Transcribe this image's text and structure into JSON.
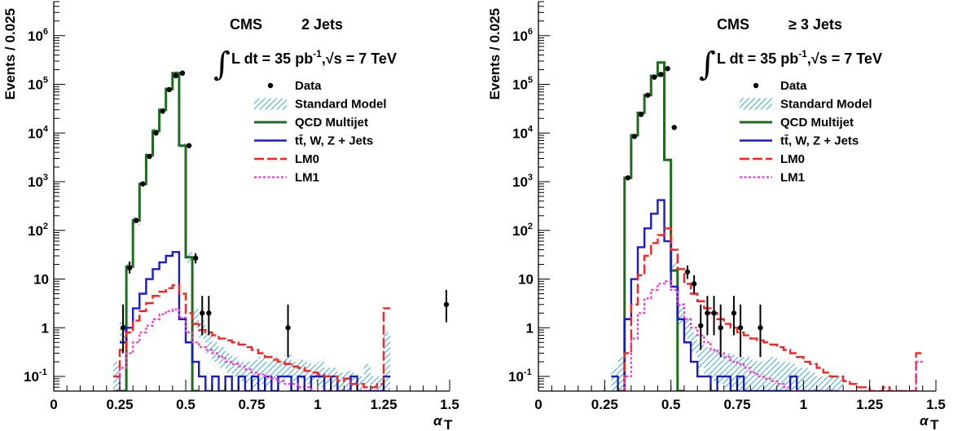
{
  "chart_data": [
    {
      "type": "step-histogram",
      "title": "CMS",
      "subtitle": "2 Jets",
      "lumi_text": "L dt = 35 pb",
      "lumi_exp": "-1",
      "lumi_tail": ",√s = 7 TeV",
      "ylabel": "Events / 0.025",
      "xlabel": "α",
      "xlabel_sub": "T",
      "xlim": [
        0,
        1.5
      ],
      "ylim": [
        0.05,
        5000000
      ],
      "log_y": true,
      "xticks": [
        {
          "v": 0,
          "t": "0"
        },
        {
          "v": 0.25,
          "t": "0.25"
        },
        {
          "v": 0.5,
          "t": "0.5"
        },
        {
          "v": 0.75,
          "t": "0.75"
        },
        {
          "v": 1,
          "t": "1"
        },
        {
          "v": 1.25,
          "t": "1.25"
        },
        {
          "v": 1.5,
          "t": "1.5"
        }
      ],
      "yticks": [
        {
          "v": 0.1,
          "b": "10",
          "e": "-1"
        },
        {
          "v": 1,
          "b": "1",
          "e": ""
        },
        {
          "v": 10,
          "b": "10",
          "e": ""
        },
        {
          "v": 100,
          "b": "10",
          "e": "2"
        },
        {
          "v": 1000,
          "b": "10",
          "e": "3"
        },
        {
          "v": 10000,
          "b": "10",
          "e": "4"
        },
        {
          "v": 100000,
          "b": "10",
          "e": "5"
        },
        {
          "v": 1000000,
          "b": "10",
          "e": "6"
        }
      ],
      "legend": [
        {
          "label": "Data",
          "style": "data"
        },
        {
          "label": "Standard Model",
          "style": "hatch"
        },
        {
          "label": "QCD Multijet",
          "style": "qcd"
        },
        {
          "label": "tt̄, W, Z + Jets",
          "style": "ewk"
        },
        {
          "label": "LM0",
          "style": "lm0"
        },
        {
          "label": "LM1",
          "style": "lm1"
        }
      ],
      "bin_width": 0.025,
      "colors": {
        "qcd": "#1f6b1f",
        "ewk": "#1a1ad6",
        "lm0": "#ff2020",
        "lm1": "#ff33cc",
        "sm_hatch": "#33aadd",
        "data": "#000000"
      },
      "series": [
        {
          "name": "QCD Multijet",
          "style": "qcd",
          "x0": 0.225,
          "values": [
            0.05,
            0.05,
            18,
            160,
            900,
            3500,
            11000,
            30000,
            80000,
            170000,
            5500,
            28,
            0.05
          ]
        },
        {
          "name": "tt̄, W, Z + Jets",
          "style": "ewk",
          "x0": 0.25,
          "values": [
            0.5,
            1,
            2.5,
            5,
            10,
            16,
            22,
            30,
            36,
            1.5,
            0.5,
            0.2,
            0.1,
            0.05,
            0.1,
            0.05,
            0.1,
            0.05,
            0.1,
            0.05,
            0.1,
            0.05,
            0.1,
            0.05,
            0.1,
            0.1,
            0.05,
            0.1,
            0.05,
            0.1,
            0.1,
            0.05,
            0.1,
            0.05,
            0.05,
            0.1,
            0.05,
            0.05,
            0.05,
            0.05,
            0.1
          ]
        },
        {
          "name": "LM0",
          "style": "lm0",
          "x0": 0.225,
          "values": [
            0.1,
            0.35,
            0.8,
            1.4,
            2.2,
            3.2,
            4.5,
            5.5,
            6.5,
            7.5,
            5,
            2,
            1.2,
            0.9,
            0.8,
            0.7,
            0.6,
            0.55,
            0.5,
            0.45,
            0.4,
            0.35,
            0.3,
            0.25,
            0.22,
            0.2,
            0.18,
            0.16,
            0.15,
            0.13,
            0.12,
            0.11,
            0.1,
            0.1,
            0.08,
            0.09,
            0.07,
            0.07,
            0.06,
            0.06,
            0.07,
            2.5
          ]
        },
        {
          "name": "LM1",
          "style": "lm1",
          "x0": 0.225,
          "values": [
            0.05,
            0.15,
            0.3,
            0.5,
            0.8,
            1.1,
            1.5,
            1.9,
            2.2,
            2.4,
            1.6,
            0.8,
            0.5,
            0.4,
            0.35,
            0.3,
            0.25,
            0.2,
            0.18,
            0.16,
            0.14,
            0.12,
            0.11,
            0.1,
            0.09,
            0.08,
            0.07,
            0.07,
            0.06,
            0.06,
            0.05,
            0.05,
            0.05,
            0.05,
            0.05,
            0.05,
            0.05,
            0.05,
            0.05,
            0.05,
            0.05,
            0.05
          ]
        }
      ],
      "sm_band": {
        "x0": 0.225,
        "lo": [
          0.05,
          0.5,
          15,
          130,
          800,
          3200,
          10000,
          28000,
          75000,
          160000,
          5000,
          22,
          1,
          0.6,
          0.3,
          0.2,
          0.15,
          0.12,
          0.1,
          0.08,
          0.07,
          0.06,
          0.07,
          0.06,
          0.08,
          0.07,
          0.1,
          0.08,
          0.09,
          0.07,
          0.08,
          0.06,
          0.07,
          0.06,
          0.05,
          0.05,
          0.06,
          0.05,
          0.07,
          0.05,
          0.05,
          0.05
        ],
        "hi": [
          0.2,
          1.3,
          22,
          190,
          1000,
          3900,
          12500,
          33000,
          88000,
          185000,
          6200,
          35,
          2.4,
          1.4,
          0.8,
          0.5,
          0.4,
          0.3,
          0.25,
          0.2,
          0.2,
          0.22,
          0.25,
          0.2,
          0.25,
          0.2,
          0.28,
          0.2,
          0.22,
          0.2,
          0.18,
          0.2,
          0.15,
          0.15,
          0.12,
          0.13,
          0.12,
          0.1,
          0.18,
          0.1,
          0.1,
          0.8
        ]
      },
      "data_points": [
        {
          "x": 0.2625,
          "y": 1,
          "lo": 0.3,
          "hi": 3
        },
        {
          "x": 0.2875,
          "y": 17,
          "lo": 13,
          "hi": 23
        },
        {
          "x": 0.3125,
          "y": 160,
          "lo": 145,
          "hi": 180
        },
        {
          "x": 0.3375,
          "y": 900,
          "lo": 860,
          "hi": 950
        },
        {
          "x": 0.3625,
          "y": 3300,
          "lo": 3200,
          "hi": 3400
        },
        {
          "x": 0.3875,
          "y": 10000,
          "lo": 9800,
          "hi": 10200
        },
        {
          "x": 0.4125,
          "y": 28000,
          "lo": 27500,
          "hi": 28500
        },
        {
          "x": 0.4375,
          "y": 78000,
          "lo": 77000,
          "hi": 79000
        },
        {
          "x": 0.4625,
          "y": 150000,
          "lo": 148000,
          "hi": 152000
        },
        {
          "x": 0.4875,
          "y": 170000,
          "lo": 168000,
          "hi": 172000
        },
        {
          "x": 0.5125,
          "y": 5500,
          "lo": 5400,
          "hi": 5600
        },
        {
          "x": 0.5375,
          "y": 27,
          "lo": 21,
          "hi": 34
        },
        {
          "x": 0.5625,
          "y": 2,
          "lo": 0.7,
          "hi": 4.5
        },
        {
          "x": 0.5875,
          "y": 2,
          "lo": 0.7,
          "hi": 4.5
        },
        {
          "x": 0.8875,
          "y": 1,
          "lo": 0.25,
          "hi": 3
        },
        {
          "x": 1.4875,
          "y": 3,
          "lo": 1.3,
          "hi": 6
        }
      ]
    },
    {
      "type": "step-histogram",
      "title": "CMS",
      "subtitle": "≥ 3 Jets",
      "lumi_text": "L dt = 35 pb",
      "lumi_exp": "-1",
      "lumi_tail": ",√s = 7 TeV",
      "ylabel": "Events / 0.025",
      "xlabel": "α",
      "xlabel_sub": "T",
      "xlim": [
        0,
        1.5
      ],
      "ylim": [
        0.05,
        5000000
      ],
      "log_y": true,
      "xticks": [
        {
          "v": 0,
          "t": "0"
        },
        {
          "v": 0.25,
          "t": "0.25"
        },
        {
          "v": 0.5,
          "t": "0.5"
        },
        {
          "v": 0.75,
          "t": "0.75"
        },
        {
          "v": 1,
          "t": "1"
        },
        {
          "v": 1.25,
          "t": "1.25"
        },
        {
          "v": 1.5,
          "t": "1.5"
        }
      ],
      "yticks": [
        {
          "v": 0.1,
          "b": "10",
          "e": "-1"
        },
        {
          "v": 1,
          "b": "1",
          "e": ""
        },
        {
          "v": 10,
          "b": "10",
          "e": ""
        },
        {
          "v": 100,
          "b": "10",
          "e": "2"
        },
        {
          "v": 1000,
          "b": "10",
          "e": "3"
        },
        {
          "v": 10000,
          "b": "10",
          "e": "4"
        },
        {
          "v": 100000,
          "b": "10",
          "e": "5"
        },
        {
          "v": 1000000,
          "b": "10",
          "e": "6"
        }
      ],
      "legend": [
        {
          "label": "Data",
          "style": "data"
        },
        {
          "label": "Standard Model",
          "style": "hatch"
        },
        {
          "label": "QCD Multijet",
          "style": "qcd"
        },
        {
          "label": "tt̄, W, Z + Jets",
          "style": "ewk"
        },
        {
          "label": "LM0",
          "style": "lm0"
        },
        {
          "label": "LM1",
          "style": "lm1"
        }
      ],
      "bin_width": 0.025,
      "colors": {
        "qcd": "#1f6b1f",
        "ewk": "#1a1ad6",
        "lm0": "#ff2020",
        "lm1": "#ff33cc",
        "sm_hatch": "#33aadd",
        "data": "#000000"
      },
      "series": [
        {
          "name": "QCD Multijet",
          "style": "qcd",
          "x0": 0.3,
          "values": [
            0.05,
            1200,
            9000,
            26000,
            60000,
            150000,
            280000,
            2800,
            15,
            0.05
          ]
        },
        {
          "name": "tt̄, W, Z + Jets",
          "style": "ewk",
          "x0": 0.275,
          "values": [
            0.1,
            0.05,
            1.5,
            10,
            45,
            110,
            220,
            420,
            60,
            7,
            1.5,
            0.5,
            0.2,
            0.1,
            0.1,
            0.05,
            0.1,
            0.1,
            0.05,
            0.1,
            0.05,
            0.05,
            0.05,
            0.05,
            0.05,
            0.05,
            0.05,
            0.1,
            0.05,
            0.05,
            0.05,
            0.05,
            0.05,
            0.05
          ]
        },
        {
          "name": "LM0",
          "style": "lm0",
          "x0": 0.3,
          "values": [
            0.05,
            0.3,
            3,
            12,
            30,
            55,
            80,
            110,
            40,
            16,
            8,
            5,
            3.5,
            2.5,
            2,
            1.5,
            1.2,
            1,
            0.8,
            0.7,
            0.6,
            0.55,
            0.5,
            0.45,
            0.4,
            0.35,
            0.3,
            0.25,
            0.2,
            0.18,
            0.15,
            0.12,
            0.1,
            0.1,
            0.08,
            0.07,
            0.06,
            0.06,
            0.05,
            0.05,
            0.06,
            0.05,
            0.05,
            0.05,
            0.05,
            0.3
          ]
        },
        {
          "name": "LM1",
          "style": "lm1",
          "x0": 0.3,
          "values": [
            0.05,
            0.1,
            0.6,
            2,
            4,
            6,
            8,
            9,
            6,
            3,
            1.5,
            1,
            0.7,
            0.5,
            0.35,
            0.3,
            0.25,
            0.2,
            0.18,
            0.15,
            0.12,
            0.1,
            0.09,
            0.08,
            0.07,
            0.06,
            0.05,
            0.05,
            0.05,
            0.05,
            0.05,
            0.05,
            0.05,
            0.05,
            0.05,
            0.05,
            0.05,
            0.05,
            0.05,
            0.05,
            0.05,
            0.05,
            0.05,
            0.05,
            0.05,
            0.2
          ]
        }
      ],
      "sm_band": {
        "x0": 0.275,
        "lo": [
          0.05,
          0.05,
          1100,
          8500,
          25000,
          58000,
          145000,
          270000,
          2600,
          14,
          1.2,
          0.6,
          0.3,
          0.15,
          0.1,
          0.08,
          0.07,
          0.06,
          0.06,
          0.05,
          0.05,
          0.05,
          0.05,
          0.05,
          0.05,
          0.05,
          0.05,
          0.05,
          0.05,
          0.05,
          0.05,
          0.05,
          0.05,
          0.05,
          0.05
        ],
        "hi": [
          0.15,
          0.25,
          1300,
          9500,
          27000,
          62000,
          155000,
          290000,
          3000,
          22,
          3,
          1.6,
          0.8,
          0.5,
          0.4,
          0.35,
          0.3,
          0.3,
          0.28,
          0.25,
          0.25,
          0.22,
          0.2,
          0.22,
          0.25,
          0.2,
          0.2,
          0.18,
          0.15,
          0.15,
          0.12,
          0.1,
          0.1,
          0.1,
          0.1
        ]
      },
      "data_points": [
        {
          "x": 0.3375,
          "y": 1200,
          "lo": 1140,
          "hi": 1260
        },
        {
          "x": 0.3625,
          "y": 8500,
          "lo": 8350,
          "hi": 8650
        },
        {
          "x": 0.3875,
          "y": 24000,
          "lo": 23700,
          "hi": 24300
        },
        {
          "x": 0.4125,
          "y": 60000,
          "lo": 59500,
          "hi": 60500
        },
        {
          "x": 0.4375,
          "y": 140000,
          "lo": 139000,
          "hi": 141000
        },
        {
          "x": 0.4625,
          "y": 160000,
          "lo": 159000,
          "hi": 161000
        },
        {
          "x": 0.4875,
          "y": 210000,
          "lo": 209000,
          "hi": 211000
        },
        {
          "x": 0.5125,
          "y": 13000,
          "lo": 12800,
          "hi": 13200
        },
        {
          "x": 0.5625,
          "y": 14,
          "lo": 10,
          "hi": 19
        },
        {
          "x": 0.5875,
          "y": 8,
          "lo": 5,
          "hi": 12
        },
        {
          "x": 0.6125,
          "y": 1.1,
          "lo": 0.35,
          "hi": 3
        },
        {
          "x": 0.6375,
          "y": 2,
          "lo": 0.7,
          "hi": 4.5
        },
        {
          "x": 0.6625,
          "y": 2,
          "lo": 0.7,
          "hi": 4.5
        },
        {
          "x": 0.6875,
          "y": 1,
          "lo": 0.25,
          "hi": 3
        },
        {
          "x": 0.7375,
          "y": 2,
          "lo": 0.7,
          "hi": 4.5
        },
        {
          "x": 0.7625,
          "y": 1,
          "lo": 0.25,
          "hi": 3
        },
        {
          "x": 0.8375,
          "y": 1,
          "lo": 0.25,
          "hi": 3
        }
      ]
    }
  ]
}
